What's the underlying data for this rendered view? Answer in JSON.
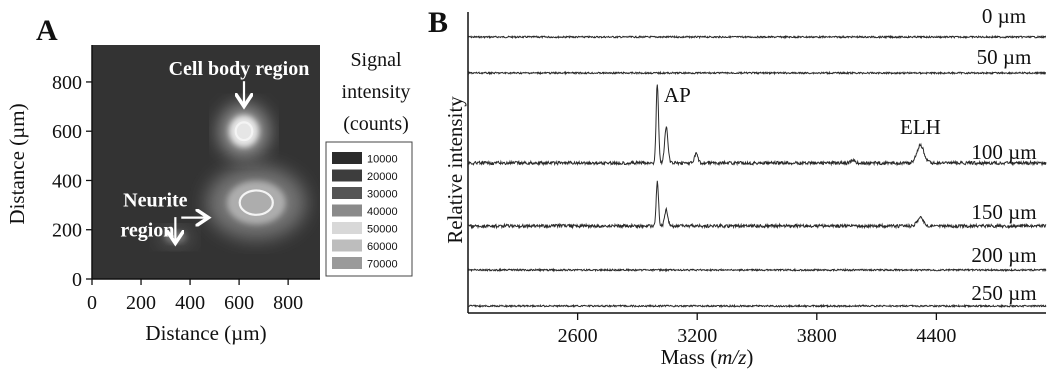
{
  "chart_data": [
    {
      "type": "heatmap",
      "panel_label": "A",
      "xlabel": "Distance (µm)",
      "ylabel": "Distance (µm)",
      "xlim": [
        0,
        930
      ],
      "ylim": [
        0,
        950
      ],
      "x_ticks": [
        0,
        200,
        400,
        600,
        800
      ],
      "y_ticks": [
        0,
        200,
        400,
        600,
        800
      ],
      "annotations": {
        "cell_body": "Cell body region",
        "neurite_line1": "Neurite",
        "neurite_line2": "region"
      },
      "hotspots": [
        {
          "x": 620,
          "y": 600,
          "rx": 75,
          "ry": 80,
          "value": 70000
        },
        {
          "x": 670,
          "y": 310,
          "rx": 150,
          "ry": 110,
          "value": 50000
        },
        {
          "x": 340,
          "y": 170,
          "rx": 55,
          "ry": 30,
          "value": 30000
        }
      ],
      "background_value": 10000,
      "legend": {
        "title_line1": "Signal",
        "title_line2": "intensity",
        "title_line3": "(counts)",
        "entries": [
          {
            "label": "10000",
            "color": "#2b2b2b"
          },
          {
            "label": "20000",
            "color": "#3d3d3d"
          },
          {
            "label": "30000",
            "color": "#555555"
          },
          {
            "label": "40000",
            "color": "#8a8a8a"
          },
          {
            "label": "50000",
            "color": "#d8d8d8"
          },
          {
            "label": "60000",
            "color": "#bdbdbd"
          },
          {
            "label": "70000",
            "color": "#9a9a9a"
          }
        ]
      }
    },
    {
      "type": "line",
      "panel_label": "B",
      "xlabel_prefix": "Mass (",
      "xlabel_italic": "m/z",
      "xlabel_suffix": ")",
      "ylabel": "Relative intensity",
      "xlim": [
        2050,
        4950
      ],
      "x_ticks": [
        2600,
        3200,
        3800,
        4400
      ],
      "peak_labels": [
        {
          "text": "AP",
          "x": 3000
        },
        {
          "text": "ELH",
          "x": 4320
        }
      ],
      "series": [
        {
          "name": "0 µm",
          "peaks": []
        },
        {
          "name": "50 µm",
          "peaks": []
        },
        {
          "name": "100 µm",
          "peaks": [
            {
              "x": 3000,
              "h": 1.0,
              "w": 6
            },
            {
              "x": 3045,
              "h": 0.45,
              "w": 8
            },
            {
              "x": 3195,
              "h": 0.12,
              "w": 8
            },
            {
              "x": 4320,
              "h": 0.22,
              "w": 18
            },
            {
              "x": 3980,
              "h": 0.03,
              "w": 10
            }
          ]
        },
        {
          "name": "150 µm",
          "peaks": [
            {
              "x": 3000,
              "h": 0.55,
              "w": 6
            },
            {
              "x": 3045,
              "h": 0.2,
              "w": 8
            },
            {
              "x": 4320,
              "h": 0.1,
              "w": 16
            }
          ]
        },
        {
          "name": "200 µm",
          "peaks": []
        },
        {
          "name": "250 µm",
          "peaks": []
        }
      ]
    }
  ]
}
